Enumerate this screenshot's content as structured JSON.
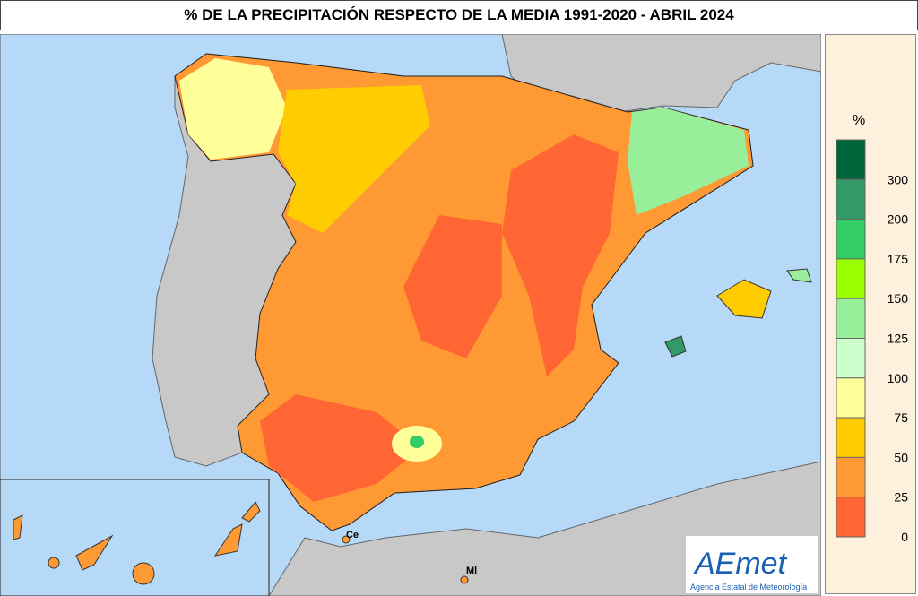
{
  "title": "% DE LA PRECIPITACIÓN RESPECTO DE LA MEDIA 1991-2020 - ABRIL 2024",
  "legend": {
    "unit": "%",
    "labels": [
      300,
      200,
      175,
      150,
      125,
      100,
      75,
      50,
      25,
      0
    ],
    "colors": [
      "#00663a",
      "#339966",
      "#33cc66",
      "#99ff00",
      "#99ee99",
      "#ccffcc",
      "#ffff99",
      "#ffcc00",
      "#ff9933",
      "#ff6633"
    ]
  },
  "places": [
    "Ce",
    "Ml"
  ],
  "logo": {
    "name": "AEmet",
    "caption": "Agencia Estatal de Meteorología"
  }
}
